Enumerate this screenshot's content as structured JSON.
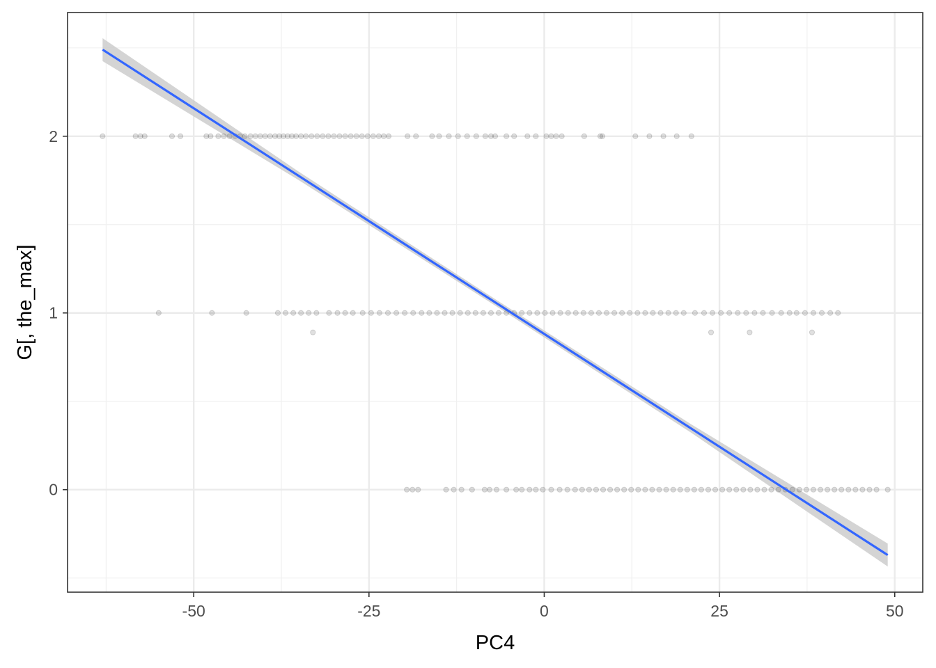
{
  "chart_data": {
    "type": "scatter",
    "xlabel": "PC4",
    "ylabel": "G[, the_max]",
    "xlim": [
      -68,
      54
    ],
    "ylim": [
      -0.58,
      2.7
    ],
    "x_ticks": [
      -50,
      -25,
      0,
      25,
      50
    ],
    "x_tick_labels": [
      "-50",
      "-25",
      "0",
      "25",
      "50"
    ],
    "y_ticks": [
      0,
      1,
      2
    ],
    "y_tick_labels": [
      "0",
      "1",
      "2"
    ],
    "grid": true,
    "legend": "none",
    "point_color": "#000000",
    "point_alpha": 0.12,
    "line_color": "#3366ff",
    "band_color": "#cccccc",
    "series": [
      {
        "kind": "points",
        "x": [
          -63.0,
          -58.3,
          -57.6,
          -57.0,
          -53.1,
          -51.9,
          -48.2,
          -47.6,
          -46.5,
          -45.7,
          -44.9,
          -44.1,
          -43.4,
          -42.7,
          -41.9,
          -41.2,
          -40.5,
          -39.8,
          -39.1,
          -38.4,
          -37.8,
          -37.2,
          -36.6,
          -36.0,
          -35.4,
          -34.7,
          -34.0,
          -33.2,
          -32.4,
          -31.6,
          -30.8,
          -30.0,
          -29.2,
          -28.4,
          -27.6,
          -26.8,
          -26.0,
          -25.2,
          -24.4,
          -23.6,
          -22.9,
          -22.2,
          -19.5,
          -18.3,
          -16.0,
          -15.0,
          -13.6,
          -12.3,
          -11.0,
          -9.7,
          -8.4,
          -7.6,
          -7.0,
          -5.4,
          -4.3,
          -2.4,
          -1.2,
          0.3,
          1.0,
          1.7,
          2.5,
          5.7,
          8.0,
          8.3,
          13.0,
          15.0,
          17.0,
          18.9,
          21.0,
          -55.0,
          -47.4,
          -42.5,
          -38.0,
          -36.9,
          -35.8,
          -34.7,
          -33.6,
          -32.5,
          -30.7,
          -29.5,
          -28.4,
          -27.3,
          -25.9,
          -24.7,
          -23.5,
          -22.3,
          -21.1,
          -19.9,
          -18.7,
          -17.5,
          -16.4,
          -15.3,
          -14.2,
          -13.1,
          -12.0,
          -10.9,
          -9.8,
          -8.7,
          -7.6,
          -6.5,
          -5.4,
          -4.3,
          -3.2,
          -2.1,
          -1.0,
          0.1,
          1.2,
          2.3,
          3.4,
          4.5,
          5.6,
          6.7,
          7.8,
          8.9,
          10.0,
          11.1,
          12.2,
          13.3,
          14.4,
          15.5,
          16.6,
          17.7,
          18.8,
          19.9,
          21.5,
          22.8,
          24.0,
          25.2,
          26.4,
          27.6,
          28.8,
          30.0,
          31.2,
          32.5,
          33.8,
          35.0,
          36.0,
          37.2,
          38.4,
          39.6,
          40.8,
          41.9,
          -33.0,
          23.8,
          29.3,
          38.2,
          -19.6,
          -18.8,
          -18.0,
          -14.0,
          -12.9,
          -11.8,
          -10.3,
          -8.5,
          -7.8,
          -6.8,
          -5.4,
          -4.0,
          -3.2,
          -2.1,
          -1.2,
          -0.2,
          1.0,
          2.2,
          3.3,
          4.4,
          5.4,
          6.4,
          7.4,
          8.4,
          9.4,
          10.4,
          11.4,
          12.4,
          13.4,
          14.4,
          15.4,
          16.4,
          17.4,
          18.4,
          19.4,
          20.4,
          21.4,
          22.4,
          23.4,
          24.4,
          25.4,
          26.4,
          27.4,
          28.4,
          29.4,
          30.4,
          31.4,
          32.4,
          33.4,
          34.4,
          35.4,
          36.4,
          37.4,
          38.4,
          39.4,
          40.4,
          41.4,
          42.4,
          43.4,
          44.4,
          45.4,
          46.4,
          47.4,
          49.0
        ],
        "y": [
          2,
          2,
          2,
          2,
          2,
          2,
          2,
          2,
          2,
          2,
          2,
          2,
          2,
          2,
          2,
          2,
          2,
          2,
          2,
          2,
          2,
          2,
          2,
          2,
          2,
          2,
          2,
          2,
          2,
          2,
          2,
          2,
          2,
          2,
          2,
          2,
          2,
          2,
          2,
          2,
          2,
          2,
          2,
          2,
          2,
          2,
          2,
          2,
          2,
          2,
          2,
          2,
          2,
          2,
          2,
          2,
          2,
          2,
          2,
          2,
          2,
          2,
          2,
          2,
          2,
          2,
          2,
          2,
          2,
          1,
          1,
          1,
          1,
          1,
          1,
          1,
          1,
          1,
          1,
          1,
          1,
          1,
          1,
          1,
          1,
          1,
          1,
          1,
          1,
          1,
          1,
          1,
          1,
          1,
          1,
          1,
          1,
          1,
          1,
          1,
          1,
          1,
          1,
          1,
          1,
          1,
          1,
          1,
          1,
          1,
          1,
          1,
          1,
          1,
          1,
          1,
          1,
          1,
          1,
          1,
          1,
          1,
          1,
          1,
          1,
          1,
          1,
          1,
          1,
          1,
          1,
          1,
          1,
          1,
          1,
          1,
          1,
          1,
          1,
          1,
          1,
          1,
          0.89,
          0.89,
          0.89,
          0.89,
          0,
          0,
          0,
          0,
          0,
          0,
          0,
          0,
          0,
          0,
          0,
          0,
          0,
          0,
          0,
          0,
          0,
          0,
          0,
          0,
          0,
          0,
          0,
          0,
          0,
          0,
          0,
          0,
          0,
          0,
          0,
          0,
          0,
          0,
          0,
          0,
          0,
          0,
          0,
          0,
          0,
          0,
          0,
          0,
          0,
          0,
          0,
          0,
          0,
          0,
          0,
          0,
          0,
          0,
          0,
          0,
          0,
          0,
          0,
          0,
          0,
          0,
          0,
          0
        ]
      },
      {
        "kind": "regression_line",
        "x": [
          -63,
          49
        ],
        "y": [
          2.49,
          -0.37
        ],
        "band_halfwidth": [
          0.065,
          0.024,
          0.018,
          0.024,
          0.065
        ],
        "band_x": [
          -63,
          -35,
          -7,
          21,
          49
        ]
      }
    ]
  }
}
